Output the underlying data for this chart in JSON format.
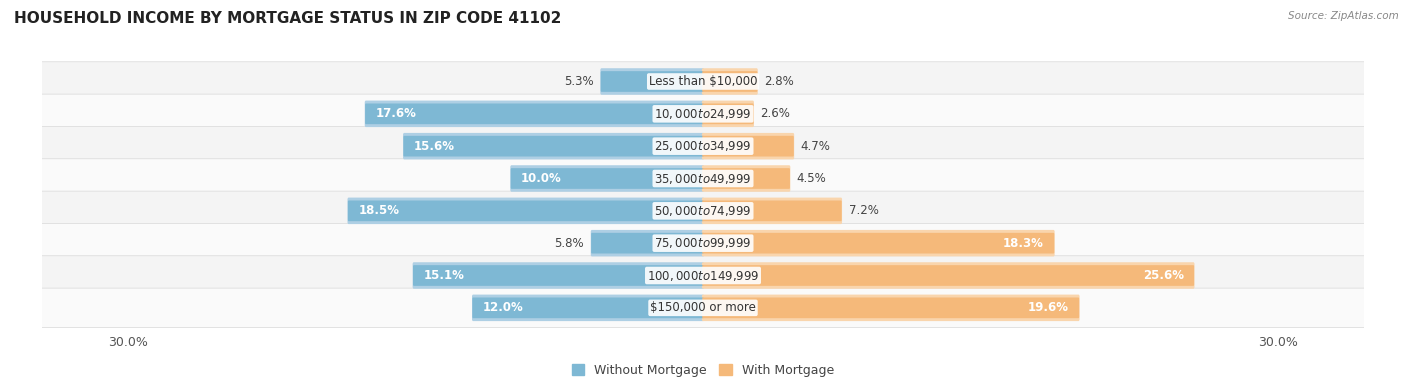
{
  "title": "HOUSEHOLD INCOME BY MORTGAGE STATUS IN ZIP CODE 41102",
  "source": "Source: ZipAtlas.com",
  "categories": [
    "Less than $10,000",
    "$10,000 to $24,999",
    "$25,000 to $34,999",
    "$35,000 to $49,999",
    "$50,000 to $74,999",
    "$75,000 to $99,999",
    "$100,000 to $149,999",
    "$150,000 or more"
  ],
  "without_mortgage": [
    5.3,
    17.6,
    15.6,
    10.0,
    18.5,
    5.8,
    15.1,
    12.0
  ],
  "with_mortgage": [
    2.8,
    2.6,
    4.7,
    4.5,
    7.2,
    18.3,
    25.6,
    19.6
  ],
  "color_without": "#7EB8D4",
  "color_without_light": "#AECFE4",
  "color_with": "#F5B97A",
  "color_with_light": "#F9D5AD",
  "axis_limit": 30.0,
  "bg_color": "#FFFFFF",
  "row_bg_even": "#F4F4F4",
  "row_bg_odd": "#FAFAFA",
  "legend_labels": [
    "Without Mortgage",
    "With Mortgage"
  ],
  "title_fontsize": 11,
  "label_fontsize": 8.5,
  "value_fontsize": 8.5,
  "tick_fontsize": 9,
  "inside_label_threshold_without": 8.0,
  "inside_label_threshold_with": 12.0
}
